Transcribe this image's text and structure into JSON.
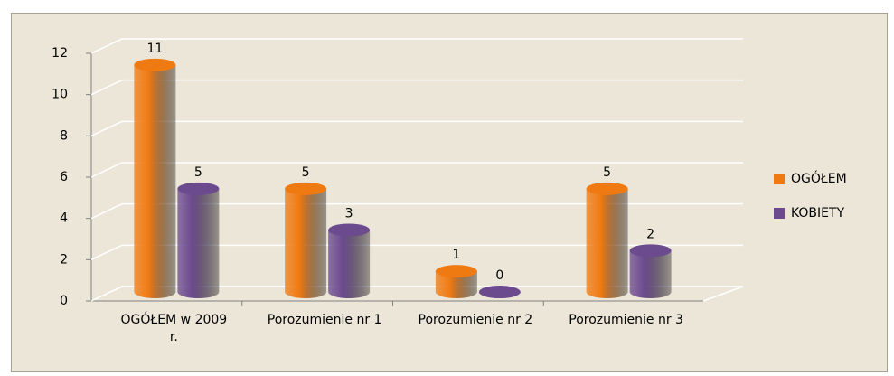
{
  "chart_data": {
    "type": "bar3d",
    "categories": [
      "OGÓŁEM w 2009 r.",
      "Porozumienie nr 1",
      "Porozumienie nr 2",
      "Porozumienie nr 3"
    ],
    "series": [
      {
        "name": "OGÓŁEM",
        "color": "#f07a12",
        "values": [
          11,
          5,
          1,
          5
        ]
      },
      {
        "name": "KOBIETY",
        "color": "#6b4a8e",
        "values": [
          5,
          3,
          0,
          2
        ]
      }
    ],
    "ylim": [
      0,
      12
    ],
    "yticks": [
      0,
      2,
      4,
      6,
      8,
      10,
      12
    ],
    "grid": true,
    "legend": "right"
  }
}
